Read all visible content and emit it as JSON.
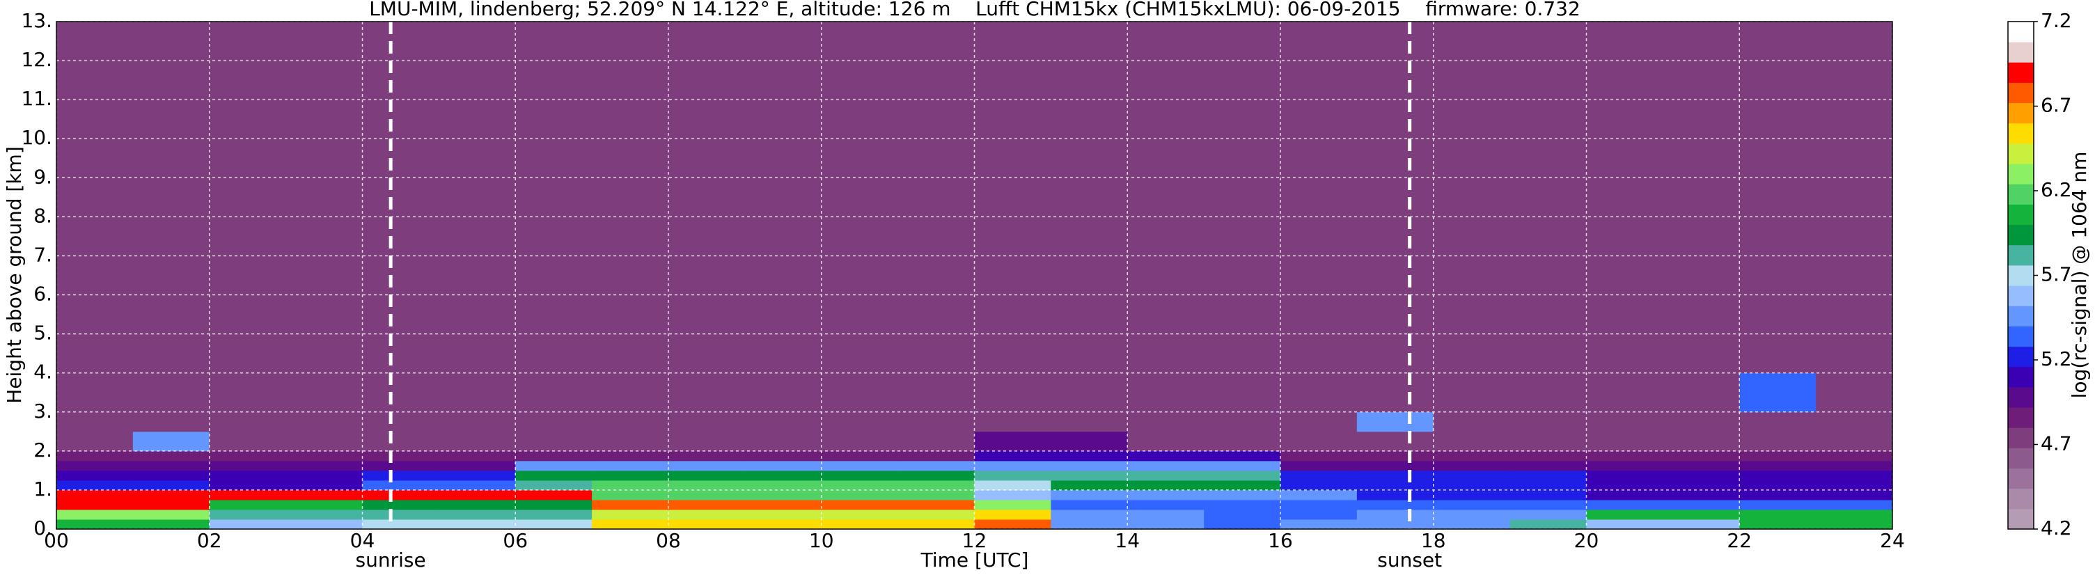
{
  "chart_data": {
    "type": "heatmap",
    "title": "LMU-MIM, lindenberg; 52.209° N 14.122° E, altitude: 126 m    Lufft CHM15kx (CHM15kxLMU): 06-09-2015    firmware: 0.732",
    "xlabel": "Time [UTC]",
    "ylabel": "Height above ground [km]",
    "xlim": [
      0,
      24
    ],
    "xticks": [
      {
        "value": 0,
        "label": "00"
      },
      {
        "value": 2,
        "label": "02"
      },
      {
        "value": 4,
        "label": "04"
      },
      {
        "value": 6,
        "label": "06"
      },
      {
        "value": 8,
        "label": "08"
      },
      10,
      12,
      14,
      16,
      18,
      20,
      22,
      24
    ],
    "ylim": [
      0,
      13
    ],
    "yticks": [
      {
        "value": 0,
        "label": "0."
      },
      {
        "value": 1,
        "label": "1."
      },
      {
        "value": 2,
        "label": "2."
      },
      {
        "value": 3,
        "label": "3."
      },
      {
        "value": 4,
        "label": "4."
      },
      {
        "value": 5,
        "label": "5."
      },
      {
        "value": 6,
        "label": "6."
      },
      {
        "value": 7,
        "label": "7."
      },
      {
        "value": 8,
        "label": "8."
      },
      {
        "value": 9,
        "label": "9."
      },
      {
        "value": 10,
        "label": "10."
      },
      {
        "value": 11,
        "label": "11."
      },
      {
        "value": 12,
        "label": "12."
      },
      {
        "value": 13,
        "label": "13."
      }
    ],
    "grid": true,
    "xbins": [
      0,
      1,
      2,
      3,
      4,
      5,
      6,
      7,
      8,
      9,
      10,
      11,
      12,
      13,
      14,
      15,
      16,
      17,
      18,
      19,
      20,
      21,
      22,
      23,
      24
    ],
    "ybins": [
      0,
      0.25,
      0.5,
      0.75,
      1,
      1.25,
      1.5,
      1.75,
      2,
      2.5,
      3,
      4,
      13
    ],
    "z": [
      [
        6.0,
        6.0,
        5.6,
        5.6,
        5.7,
        5.7,
        5.7,
        6.6,
        6.6,
        6.5,
        6.6,
        6.6,
        6.8,
        5.4,
        5.4,
        5.3,
        5.4,
        5.5,
        5.5,
        5.8,
        5.6,
        5.6,
        6.0,
        6.0
      ],
      [
        6.3,
        6.3,
        5.8,
        5.8,
        5.8,
        5.8,
        5.8,
        6.4,
        6.4,
        6.4,
        6.4,
        6.4,
        6.5,
        5.5,
        5.5,
        5.3,
        5.3,
        5.4,
        5.4,
        5.4,
        6.1,
        6.1,
        6.1,
        6.1
      ],
      [
        6.9,
        6.9,
        6.0,
        6.0,
        5.9,
        5.9,
        5.9,
        6.8,
        6.8,
        6.8,
        6.8,
        6.8,
        6.3,
        5.3,
        5.3,
        5.3,
        5.3,
        5.3,
        5.3,
        5.3,
        5.3,
        5.3,
        5.3,
        5.3
      ],
      [
        6.9,
        6.9,
        6.9,
        6.9,
        6.9,
        6.9,
        6.9,
        6.2,
        6.2,
        6.2,
        6.2,
        6.2,
        5.6,
        5.4,
        5.4,
        5.4,
        5.4,
        5.2,
        5.2,
        5.2,
        5.1,
        5.1,
        5.1,
        5.1
      ],
      [
        5.2,
        5.2,
        5.1,
        5.1,
        5.3,
        5.3,
        5.8,
        6.2,
        6.2,
        6.2,
        6.2,
        6.2,
        5.7,
        5.9,
        5.9,
        5.9,
        5.2,
        5.2,
        5.2,
        5.2,
        5.1,
        5.1,
        5.1,
        5.1
      ],
      [
        5.1,
        5.1,
        5.1,
        5.1,
        5.2,
        5.2,
        5.9,
        5.9,
        5.9,
        5.9,
        5.9,
        5.9,
        5.8,
        5.8,
        5.8,
        5.8,
        5.2,
        5.2,
        5.2,
        5.2,
        5.1,
        5.1,
        5.1,
        5.1
      ],
      [
        5.0,
        5.0,
        5.0,
        5.0,
        5.0,
        5.0,
        5.4,
        5.4,
        5.4,
        5.4,
        5.4,
        5.4,
        5.5,
        5.5,
        5.5,
        5.5,
        5.0,
        5.0,
        5.0,
        5.0,
        5.0,
        5.0,
        5.0,
        5.0
      ],
      [
        4.9,
        4.9,
        4.9,
        4.9,
        4.9,
        4.9,
        4.9,
        4.9,
        4.9,
        4.9,
        4.9,
        4.9,
        5.1,
        5.1,
        5.1,
        5.1,
        4.9,
        4.9,
        4.9,
        4.9,
        4.9,
        4.9,
        4.9,
        4.9
      ],
      [
        4.8,
        5.5,
        4.8,
        4.8,
        4.8,
        4.8,
        4.8,
        4.8,
        4.8,
        4.8,
        4.8,
        4.8,
        5.0,
        5.0,
        4.8,
        4.8,
        4.8,
        4.8,
        4.8,
        4.8,
        4.8,
        4.8,
        4.8,
        4.8
      ],
      [
        4.8,
        4.8,
        4.8,
        4.8,
        4.8,
        4.8,
        4.8,
        4.8,
        4.8,
        4.8,
        4.8,
        4.8,
        4.8,
        4.8,
        4.8,
        4.8,
        4.8,
        5.5,
        4.8,
        4.8,
        4.8,
        4.8,
        4.8,
        4.8
      ],
      [
        4.75,
        4.75,
        4.75,
        4.75,
        4.75,
        4.75,
        4.75,
        4.75,
        4.75,
        4.75,
        4.75,
        4.75,
        4.75,
        4.75,
        4.75,
        4.75,
        4.75,
        4.75,
        4.75,
        4.75,
        4.75,
        4.75,
        5.3,
        4.75
      ],
      [
        4.7,
        4.7,
        4.7,
        4.7,
        4.7,
        4.7,
        4.7,
        4.7,
        4.7,
        4.7,
        4.7,
        4.7,
        4.7,
        4.7,
        4.7,
        4.7,
        4.7,
        4.7,
        4.7,
        4.7,
        4.7,
        4.7,
        4.7,
        4.7
      ]
    ],
    "annotations": [
      {
        "text": "sunrise",
        "x": 4.37
      },
      {
        "text": "sunset",
        "x": 17.69
      }
    ],
    "colorbar": {
      "label": "log(rc-signal) @ 1064 nm",
      "lim": [
        4.2,
        7.2
      ],
      "ticks": [
        4.2,
        4.7,
        5.2,
        5.7,
        6.2,
        6.7,
        7.2
      ],
      "colors": [
        "#b49cb4",
        "#a98aa9",
        "#9c719c",
        "#8d5a8d",
        "#7e3e7e",
        "#6e1e78",
        "#5a0a8c",
        "#3c00b4",
        "#1e1ee6",
        "#3264ff",
        "#6496ff",
        "#96beff",
        "#b4dcf0",
        "#46b4a0",
        "#00963c",
        "#14b43c",
        "#50d264",
        "#8cf064",
        "#c8f03c",
        "#ffdc00",
        "#ffa000",
        "#ff5a00",
        "#ff0000",
        "#e8d0d0",
        "#ffffff"
      ]
    }
  }
}
